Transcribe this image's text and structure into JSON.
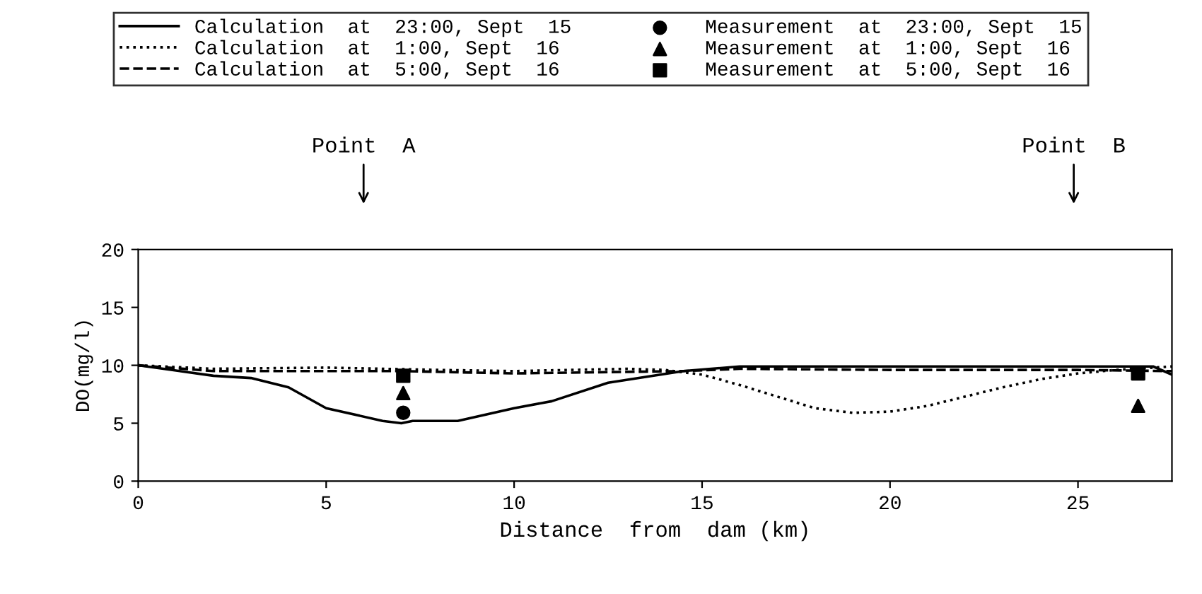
{
  "chart_data": {
    "type": "line",
    "xlabel": "Distance  from  dam (km)",
    "ylabel": "DO(mg/l)",
    "xlim": [
      0,
      27.5
    ],
    "ylim": [
      0,
      20
    ],
    "xticks": [
      0,
      5,
      10,
      15,
      20,
      25
    ],
    "yticks": [
      0,
      5,
      10,
      15,
      20
    ],
    "grid": false,
    "legend": "top",
    "annotations": [
      "Point  A",
      "Point  B"
    ],
    "series": [
      {
        "name": "Calculation  at  23:00, Sept  15",
        "color": "#000000",
        "line_style": "solid",
        "marker": "none",
        "x": [
          0,
          2,
          3,
          4,
          5,
          6.5,
          7,
          7.3,
          8.5,
          10,
          11,
          12.5,
          14.5,
          16,
          27,
          27.5
        ],
        "values": [
          10,
          9.1,
          8.9,
          8.1,
          6.3,
          5.2,
          5.0,
          5.2,
          5.2,
          6.3,
          6.9,
          8.5,
          9.5,
          9.9,
          9.9,
          9.2
        ]
      },
      {
        "name": "Calculation  at  1:00, Sept  16",
        "color": "#000000",
        "line_style": "dotted",
        "marker": "none",
        "x": [
          0,
          2,
          5,
          8,
          10,
          13,
          14,
          15,
          16,
          17,
          18,
          19,
          20,
          21,
          22,
          23,
          24,
          25,
          26,
          27.5
        ],
        "values": [
          10,
          9.7,
          9.8,
          9.6,
          9.5,
          9.7,
          9.6,
          9.2,
          8.3,
          7.3,
          6.3,
          5.9,
          6.0,
          6.5,
          7.3,
          8.1,
          8.8,
          9.3,
          9.6,
          9.9
        ]
      },
      {
        "name": "Calculation  at  5:00, Sept  16",
        "color": "#000000",
        "line_style": "dashed",
        "marker": "none",
        "x": [
          0,
          2,
          7,
          10,
          14.5,
          16,
          20,
          25,
          27.5
        ],
        "values": [
          10,
          9.5,
          9.5,
          9.3,
          9.5,
          9.7,
          9.6,
          9.6,
          9.5
        ]
      },
      {
        "name": "Measurement  at  23:00, Sept  15",
        "type": "scatter",
        "color": "#000000",
        "marker": "circle",
        "x": [
          7.05
        ],
        "values": [
          5.9
        ]
      },
      {
        "name": "Measurement  at  1:00, Sept  16",
        "type": "scatter",
        "color": "#000000",
        "marker": "triangle",
        "x": [
          7.05,
          26.6
        ],
        "values": [
          7.6,
          6.5
        ]
      },
      {
        "name": "Measurement  at  5:00, Sept  16",
        "type": "scatter",
        "color": "#000000",
        "marker": "square",
        "x": [
          7.05,
          26.6
        ],
        "values": [
          9.1,
          9.3
        ]
      }
    ]
  }
}
